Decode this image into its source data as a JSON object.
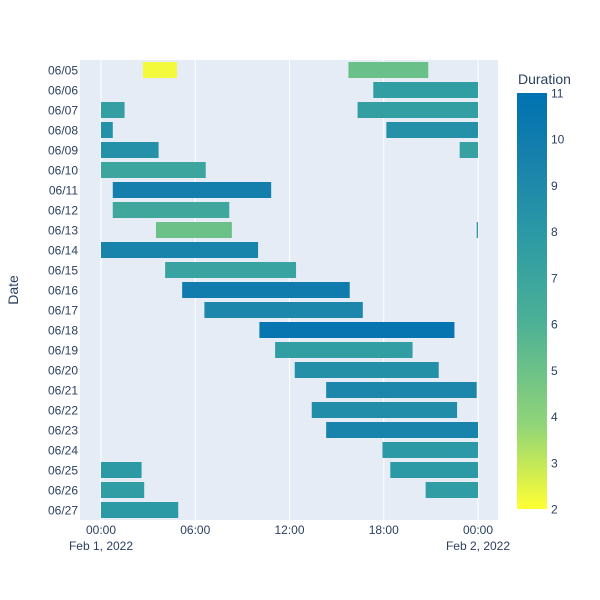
{
  "chart_data": {
    "type": "gantt",
    "xlabel": "",
    "ylabel": "Date",
    "x_ticks": [
      "00:00",
      "06:00",
      "12:00",
      "18:00",
      "00:00"
    ],
    "x_tick_dates": [
      "Feb 1, 2022",
      "",
      "",
      "",
      "Feb 2, 2022"
    ],
    "colorbar": {
      "title": "Duration",
      "ticks": [
        2,
        3,
        4,
        5,
        6,
        7,
        8,
        9,
        10,
        11
      ],
      "range": [
        2,
        11
      ]
    },
    "rows": [
      {
        "date": "06/05",
        "segments": [
          {
            "start": "02:40",
            "end": "04:50",
            "duration": 2.2
          },
          {
            "start": "15:45",
            "end": "20:50",
            "duration": 5.1
          }
        ]
      },
      {
        "date": "06/06",
        "segments": [
          {
            "start": "17:20",
            "end": "24:00",
            "duration": 7.6
          }
        ]
      },
      {
        "date": "06/07",
        "segments": [
          {
            "start": "00:00",
            "end": "01:30",
            "duration": 7.5
          },
          {
            "start": "16:20",
            "end": "24:00",
            "duration": 7.5
          }
        ]
      },
      {
        "date": "06/08",
        "segments": [
          {
            "start": "00:00",
            "end": "00:45",
            "duration": 8.5
          },
          {
            "start": "18:10",
            "end": "24:00",
            "duration": 8.5
          }
        ]
      },
      {
        "date": "06/09",
        "segments": [
          {
            "start": "00:00",
            "end": "03:40",
            "duration": 8.5
          },
          {
            "start": "22:50",
            "end": "24:00",
            "duration": 7.3
          }
        ]
      },
      {
        "date": "06/10",
        "segments": [
          {
            "start": "00:00",
            "end": "06:40",
            "duration": 7.0
          }
        ]
      },
      {
        "date": "06/11",
        "segments": [
          {
            "start": "00:45",
            "end": "10:50",
            "duration": 9.8
          }
        ]
      },
      {
        "date": "06/12",
        "segments": [
          {
            "start": "00:45",
            "end": "08:10",
            "duration": 6.8
          }
        ]
      },
      {
        "date": "06/13",
        "segments": [
          {
            "start": "03:30",
            "end": "08:20",
            "duration": 5.0
          },
          {
            "start": "23:55",
            "end": "24:00",
            "duration": 8.0
          }
        ]
      },
      {
        "date": "06/14",
        "segments": [
          {
            "start": "00:00",
            "end": "10:00",
            "duration": 9.4
          }
        ]
      },
      {
        "date": "06/15",
        "segments": [
          {
            "start": "04:05",
            "end": "12:25",
            "duration": 7.2
          }
        ]
      },
      {
        "date": "06/16",
        "segments": [
          {
            "start": "05:10",
            "end": "15:50",
            "duration": 10.0
          }
        ]
      },
      {
        "date": "06/17",
        "segments": [
          {
            "start": "06:35",
            "end": "16:40",
            "duration": 9.2
          }
        ]
      },
      {
        "date": "06/18",
        "segments": [
          {
            "start": "10:05",
            "end": "22:30",
            "duration": 10.6
          }
        ]
      },
      {
        "date": "06/19",
        "segments": [
          {
            "start": "11:05",
            "end": "19:50",
            "duration": 7.6
          }
        ]
      },
      {
        "date": "06/20",
        "segments": [
          {
            "start": "12:20",
            "end": "21:30",
            "duration": 8.6
          }
        ]
      },
      {
        "date": "06/21",
        "segments": [
          {
            "start": "14:20",
            "end": "23:55",
            "duration": 9.2
          }
        ]
      },
      {
        "date": "06/22",
        "segments": [
          {
            "start": "13:25",
            "end": "22:40",
            "duration": 8.8
          }
        ]
      },
      {
        "date": "06/23",
        "segments": [
          {
            "start": "14:20",
            "end": "24:00",
            "duration": 9.4
          }
        ]
      },
      {
        "date": "06/24",
        "segments": [
          {
            "start": "17:55",
            "end": "24:00",
            "duration": 8.0
          }
        ]
      },
      {
        "date": "06/25",
        "segments": [
          {
            "start": "00:00",
            "end": "02:35",
            "duration": 7.9
          },
          {
            "start": "18:25",
            "end": "24:00",
            "duration": 7.9
          }
        ]
      },
      {
        "date": "06/26",
        "segments": [
          {
            "start": "00:00",
            "end": "02:45",
            "duration": 7.7
          },
          {
            "start": "20:40",
            "end": "24:00",
            "duration": 7.7
          }
        ]
      },
      {
        "date": "06/27",
        "segments": [
          {
            "start": "00:00",
            "end": "04:55",
            "duration": 7.9
          }
        ]
      }
    ]
  }
}
